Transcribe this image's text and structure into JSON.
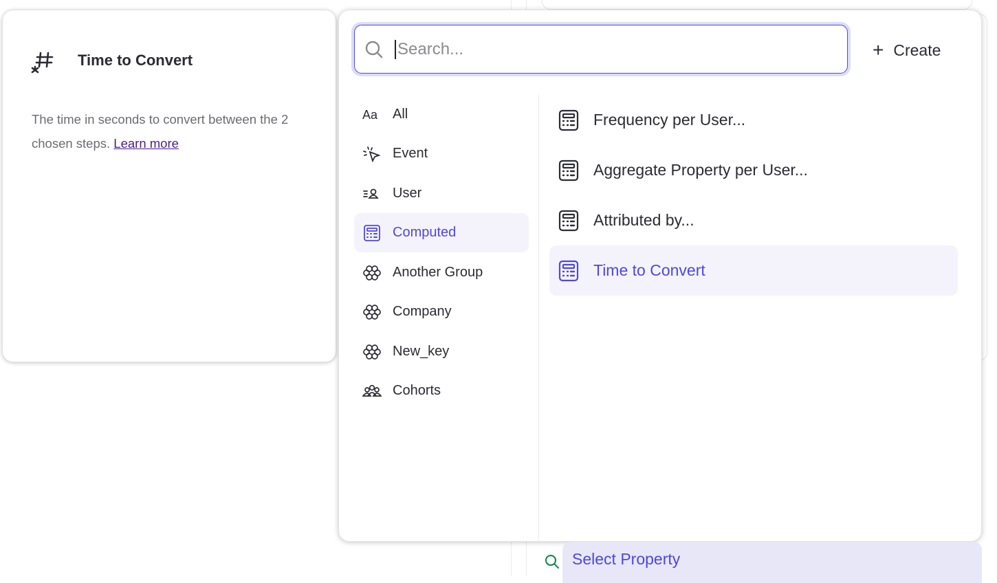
{
  "info_card": {
    "icon": "hash-asterisk-icon",
    "title": "Time to Convert",
    "description": "The time in seconds to convert between the 2 chosen steps.",
    "learn_more": "Learn more"
  },
  "dropdown": {
    "search": {
      "placeholder": "Search...",
      "value": ""
    },
    "create_label": "Create",
    "categories": [
      {
        "label": "All",
        "icon": "text-aa-icon"
      },
      {
        "label": "Event",
        "icon": "cursor-click-icon"
      },
      {
        "label": "User",
        "icon": "user-list-icon"
      },
      {
        "label": "Computed",
        "icon": "calculator-icon",
        "selected": true
      },
      {
        "label": "Another Group",
        "icon": "group-flower-icon"
      },
      {
        "label": "Company",
        "icon": "group-flower-icon"
      },
      {
        "label": "New_key",
        "icon": "group-flower-icon"
      },
      {
        "label": "Cohorts",
        "icon": "cohorts-icon"
      }
    ],
    "options": [
      {
        "label": "Frequency per User...",
        "icon": "calculator-icon"
      },
      {
        "label": "Aggregate Property per User...",
        "icon": "calculator-icon"
      },
      {
        "label": "Attributed by...",
        "icon": "calculator-icon"
      },
      {
        "label": "Time to Convert",
        "icon": "calculator-icon",
        "highlighted": true
      }
    ]
  },
  "background": {
    "select_property": "Select Property"
  },
  "colors": {
    "accent": "#4f46e5",
    "highlight_bg": "#f4f3fc",
    "select_bg": "#e8e7f8",
    "search_icon_green": "#1e8a5a",
    "link": "#4b1c8c"
  }
}
